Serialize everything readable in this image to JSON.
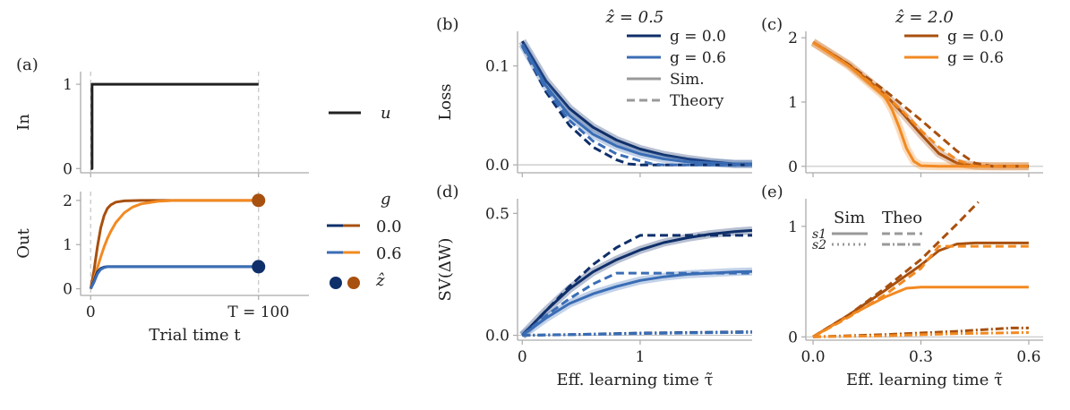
{
  "colors": {
    "dark_blue": "#0f2f6a",
    "mid_blue": "#3a6db5",
    "dark_orange": "#a8500f",
    "orange": "#f28a22",
    "black": "#222222",
    "grey": "#999999",
    "axis": "#aaaaaa"
  },
  "chart_data": [
    {
      "id": "a_in",
      "panel_label": "(a)",
      "type": "line",
      "title": "",
      "xlabel": "",
      "ylabel": "In",
      "xlim": [
        -6,
        130
      ],
      "ylim": [
        -0.05,
        1.15
      ],
      "yticks": [
        0,
        1
      ],
      "yticklabels": [
        "0",
        "1"
      ],
      "xticks": [
        0,
        100
      ],
      "xticklabels": [],
      "vlines": [
        0,
        100
      ],
      "series": [
        {
          "name": "u",
          "color": "black",
          "x": [
            0,
            0.8,
            0.8,
            100
          ],
          "y": [
            0,
            0,
            1,
            1
          ]
        }
      ],
      "legend": [
        {
          "label": "u",
          "color": "black",
          "style": "solid"
        }
      ],
      "legend_placement": "right"
    },
    {
      "id": "a_out",
      "panel_label": "",
      "type": "line",
      "title": "",
      "xlabel": "Trial time t",
      "ylabel": "Out",
      "xlim": [
        -6,
        130
      ],
      "ylim": [
        -0.15,
        2.2
      ],
      "yticks": [
        0,
        1,
        2
      ],
      "yticklabels": [
        "0",
        "1",
        "2"
      ],
      "xticks": [
        0,
        100
      ],
      "xticklabels": [
        "0",
        "T = 100"
      ],
      "vlines": [
        0,
        100
      ],
      "series": [
        {
          "name": "0.0",
          "color": "dark_orange",
          "x": [
            0,
            2,
            4,
            6,
            8,
            10,
            12,
            15,
            20,
            30,
            50,
            100
          ],
          "y": [
            0,
            0.42,
            0.95,
            1.38,
            1.66,
            1.82,
            1.9,
            1.96,
            1.99,
            2.0,
            2.0,
            2.0
          ]
        },
        {
          "name": "0.6",
          "color": "orange",
          "x": [
            0,
            2,
            4,
            6,
            8,
            10,
            12,
            15,
            20,
            25,
            30,
            40,
            50,
            100
          ],
          "y": [
            0,
            0.22,
            0.48,
            0.72,
            0.95,
            1.14,
            1.3,
            1.5,
            1.72,
            1.85,
            1.92,
            1.98,
            2.0,
            2.0
          ]
        },
        {
          "name": "0.0",
          "color": "dark_blue",
          "x": [
            0,
            2,
            4,
            6,
            8,
            10,
            15,
            20,
            100
          ],
          "y": [
            0,
            0.18,
            0.38,
            0.46,
            0.49,
            0.5,
            0.5,
            0.5,
            0.5
          ]
        },
        {
          "name": "0.6",
          "color": "mid_blue",
          "x": [
            0,
            2,
            4,
            6,
            8,
            10,
            15,
            20,
            100
          ],
          "y": [
            0,
            0.15,
            0.34,
            0.44,
            0.48,
            0.5,
            0.5,
            0.5,
            0.5
          ]
        }
      ],
      "markers": [
        {
          "x": 100,
          "y": 2.0,
          "color": "dark_orange"
        },
        {
          "x": 100,
          "y": 0.5,
          "color": "dark_blue"
        }
      ],
      "legend_title": "g",
      "legend": [
        {
          "label": "0.0",
          "colors": [
            "dark_blue",
            "dark_orange"
          ]
        },
        {
          "label": "0.6",
          "colors": [
            "mid_blue",
            "orange"
          ]
        },
        {
          "label": "ẑ",
          "dots": [
            "dark_blue",
            "dark_orange"
          ]
        }
      ],
      "legend_placement": "right"
    },
    {
      "id": "b",
      "panel_label": "(b)",
      "type": "line",
      "title": "ẑ = 0.5",
      "xlabel": "",
      "ylabel": "Loss",
      "xlim": [
        -0.04,
        1.95
      ],
      "ylim": [
        -0.008,
        0.135
      ],
      "yticks": [
        0,
        0.1
      ],
      "yticklabels": [
        "0.0",
        "0.1"
      ],
      "xticks": [
        0,
        1
      ],
      "xticklabels": [],
      "hline": 0,
      "series": [
        {
          "name": "g = 0.0 Sim.",
          "color": "dark_blue",
          "style": "band",
          "x": [
            0,
            0.2,
            0.4,
            0.6,
            0.8,
            1.0,
            1.2,
            1.4,
            1.6,
            1.8,
            1.95
          ],
          "y": [
            0.125,
            0.085,
            0.057,
            0.038,
            0.025,
            0.016,
            0.01,
            0.006,
            0.003,
            0.001,
            0.001
          ]
        },
        {
          "name": "g = 0.6 Sim.",
          "color": "mid_blue",
          "style": "band",
          "x": [
            0,
            0.2,
            0.4,
            0.6,
            0.8,
            1.0,
            1.2,
            1.4,
            1.6,
            1.8,
            1.95
          ],
          "y": [
            0.122,
            0.08,
            0.05,
            0.031,
            0.019,
            0.011,
            0.006,
            0.003,
            0.002,
            0.001,
            0.001
          ]
        },
        {
          "name": "g = 0.0 Theory",
          "color": "dark_blue",
          "style": "dashed",
          "x": [
            0,
            0.2,
            0.4,
            0.6,
            0.8,
            0.9,
            1.0,
            1.2,
            1.95
          ],
          "y": [
            0.12,
            0.074,
            0.04,
            0.018,
            0.005,
            0.001,
            0,
            0,
            0
          ]
        },
        {
          "name": "g = 0.6 Theory",
          "color": "mid_blue",
          "style": "dashed",
          "x": [
            0,
            0.2,
            0.4,
            0.6,
            0.8,
            1.0,
            1.1,
            1.2,
            1.95
          ],
          "y": [
            0.12,
            0.077,
            0.045,
            0.024,
            0.011,
            0.004,
            0.001,
            0,
            0
          ]
        }
      ],
      "legend": [
        {
          "label": "g = 0.0",
          "color": "dark_blue",
          "style": "solid"
        },
        {
          "label": "g = 0.6",
          "color": "mid_blue",
          "style": "solid"
        },
        {
          "label": "Sim.",
          "color": "grey",
          "style": "solid"
        },
        {
          "label": "Theory",
          "color": "grey",
          "style": "dashed"
        }
      ],
      "legend_placement": "top-right"
    },
    {
      "id": "c",
      "panel_label": "(c)",
      "type": "line",
      "title": "ẑ = 2.0",
      "xlabel": "",
      "ylabel": "",
      "xlim": [
        -0.02,
        0.64
      ],
      "ylim": [
        -0.1,
        2.1
      ],
      "yticks": [
        0,
        1,
        2
      ],
      "yticklabels": [
        "0",
        "1",
        "2"
      ],
      "xticks": [
        0,
        0.3,
        0.6
      ],
      "xticklabels": [],
      "hline": 0,
      "series": [
        {
          "name": "g = 0.0 Sim.",
          "color": "dark_orange",
          "style": "band",
          "x": [
            0,
            0.1,
            0.2,
            0.25,
            0.3,
            0.35,
            0.4,
            0.45,
            0.5,
            0.6
          ],
          "y": [
            1.93,
            1.58,
            1.12,
            0.82,
            0.5,
            0.2,
            0.05,
            0.01,
            0,
            0
          ]
        },
        {
          "name": "g = 0.6 Sim.",
          "color": "orange",
          "style": "band",
          "x": [
            0,
            0.1,
            0.2,
            0.22,
            0.24,
            0.26,
            0.28,
            0.3,
            0.35,
            0.6
          ],
          "y": [
            1.93,
            1.56,
            1.08,
            0.88,
            0.6,
            0.28,
            0.08,
            0.01,
            0,
            0
          ]
        },
        {
          "name": "g = 0.0 Theory",
          "color": "dark_orange",
          "style": "dashed",
          "x": [
            0,
            0.1,
            0.2,
            0.3,
            0.35,
            0.4,
            0.45,
            0.5,
            0.6
          ],
          "y": [
            1.93,
            1.58,
            1.18,
            0.72,
            0.48,
            0.24,
            0.05,
            0,
            0
          ]
        },
        {
          "name": "g = 0.6 Theory",
          "color": "orange",
          "style": "dashed",
          "x": [
            0,
            0.1,
            0.2,
            0.25,
            0.3,
            0.35,
            0.4,
            0.45,
            0.6
          ],
          "y": [
            1.93,
            1.56,
            1.12,
            0.85,
            0.56,
            0.3,
            0.1,
            0,
            0
          ]
        }
      ],
      "legend": [
        {
          "label": "g = 0.0",
          "color": "dark_orange",
          "style": "solid"
        },
        {
          "label": "g = 0.6",
          "color": "orange",
          "style": "solid"
        }
      ],
      "legend_placement": "top-right"
    },
    {
      "id": "d",
      "panel_label": "(d)",
      "type": "line",
      "title": "",
      "xlabel": "Eff. learning time τ̃",
      "ylabel": "SV(ΔW)",
      "xlim": [
        -0.04,
        1.95
      ],
      "ylim": [
        -0.02,
        0.56
      ],
      "yticks": [
        0,
        0.5
      ],
      "yticklabels": [
        "0.0",
        "0.5"
      ],
      "xticks": [
        0,
        1
      ],
      "xticklabels": [
        "0",
        "1"
      ],
      "hline": 0,
      "series": [
        {
          "name": "g = 0.0 s1 Sim.",
          "color": "dark_blue",
          "style": "band",
          "x": [
            0,
            0.2,
            0.4,
            0.6,
            0.8,
            1.0,
            1.2,
            1.4,
            1.6,
            1.8,
            1.95
          ],
          "y": [
            0,
            0.1,
            0.19,
            0.26,
            0.31,
            0.35,
            0.38,
            0.4,
            0.415,
            0.425,
            0.43
          ]
        },
        {
          "name": "g = 0.6 s1 Sim.",
          "color": "mid_blue",
          "style": "band",
          "x": [
            0,
            0.2,
            0.4,
            0.6,
            0.8,
            1.0,
            1.2,
            1.4,
            1.6,
            1.8,
            1.95
          ],
          "y": [
            0,
            0.07,
            0.13,
            0.17,
            0.2,
            0.225,
            0.24,
            0.25,
            0.255,
            0.26,
            0.262
          ]
        },
        {
          "name": "g = 0.0 s1 Theory",
          "color": "dark_blue",
          "style": "dashed",
          "x": [
            0,
            0.2,
            0.4,
            0.6,
            0.8,
            1.0,
            1.95
          ],
          "y": [
            0,
            0.1,
            0.2,
            0.29,
            0.36,
            0.41,
            0.41
          ]
        },
        {
          "name": "g = 0.6 s1 Theory",
          "color": "mid_blue",
          "style": "dashed",
          "x": [
            0,
            0.2,
            0.4,
            0.6,
            0.8,
            1.95
          ],
          "y": [
            0,
            0.08,
            0.15,
            0.21,
            0.255,
            0.255
          ]
        },
        {
          "name": "g = 0.0 s2",
          "color": "dark_blue",
          "style": "dashdot",
          "x": [
            0,
            0.5,
            1.0,
            1.5,
            1.95
          ],
          "y": [
            0,
            0.004,
            0.009,
            0.012,
            0.014
          ]
        },
        {
          "name": "g = 0.6 s2",
          "color": "mid_blue",
          "style": "dashdot",
          "x": [
            0,
            0.5,
            1.0,
            1.5,
            1.95
          ],
          "y": [
            0,
            0.003,
            0.007,
            0.01,
            0.012
          ]
        }
      ],
      "legend": []
    },
    {
      "id": "e",
      "panel_label": "(e)",
      "type": "line",
      "title": "",
      "xlabel": "Eff. learning time τ̃",
      "ylabel": "",
      "xlim": [
        -0.02,
        0.64
      ],
      "ylim": [
        -0.03,
        1.25
      ],
      "yticks": [
        0,
        1
      ],
      "yticklabels": [
        "0",
        "1"
      ],
      "xticks": [
        0,
        0.3,
        0.6
      ],
      "xticklabels": [
        "0.0",
        "0.3",
        "0.6"
      ],
      "hline": 0,
      "series": [
        {
          "name": "g = 0.0 s1 Sim.",
          "color": "dark_orange",
          "style": "solid",
          "x": [
            0,
            0.1,
            0.2,
            0.3,
            0.35,
            0.4,
            0.45,
            0.6
          ],
          "y": [
            0,
            0.2,
            0.42,
            0.65,
            0.78,
            0.84,
            0.85,
            0.85
          ]
        },
        {
          "name": "g = 0.6 s1 Sim.",
          "color": "orange",
          "style": "solid",
          "x": [
            0,
            0.1,
            0.2,
            0.26,
            0.3,
            0.32,
            0.6
          ],
          "y": [
            0,
            0.19,
            0.36,
            0.44,
            0.45,
            0.45,
            0.45
          ]
        },
        {
          "name": "g = 0.0 s1 Theory",
          "color": "dark_orange",
          "style": "dashed",
          "x": [
            0,
            0.1,
            0.2,
            0.3,
            0.4,
            0.46
          ],
          "y": [
            0,
            0.2,
            0.44,
            0.7,
            1.02,
            1.22
          ]
        },
        {
          "name": "g = 0.6 s1 Theory",
          "color": "orange",
          "style": "dashed",
          "x": [
            0,
            0.1,
            0.2,
            0.3,
            0.35,
            0.6
          ],
          "y": [
            0,
            0.18,
            0.38,
            0.62,
            0.82,
            0.82
          ]
        },
        {
          "name": "g = 0.0 s2",
          "color": "dark_orange",
          "style": "dashdot",
          "x": [
            0,
            0.2,
            0.4,
            0.55,
            0.6
          ],
          "y": [
            0,
            0.02,
            0.05,
            0.08,
            0.08
          ]
        },
        {
          "name": "g = 0.6 s2",
          "color": "orange",
          "style": "dashdot",
          "x": [
            0,
            0.2,
            0.4,
            0.6
          ],
          "y": [
            0,
            0.01,
            0.03,
            0.04
          ]
        }
      ],
      "legend_title": [
        "Sim",
        "Theo"
      ],
      "legend": [
        {
          "label": "s1",
          "color": "grey",
          "style": "solid",
          "style2": "dashed"
        },
        {
          "label": "s2",
          "color": "grey",
          "style": "dotted",
          "style2": "dashdot"
        }
      ],
      "legend_placement": "top-left"
    }
  ]
}
